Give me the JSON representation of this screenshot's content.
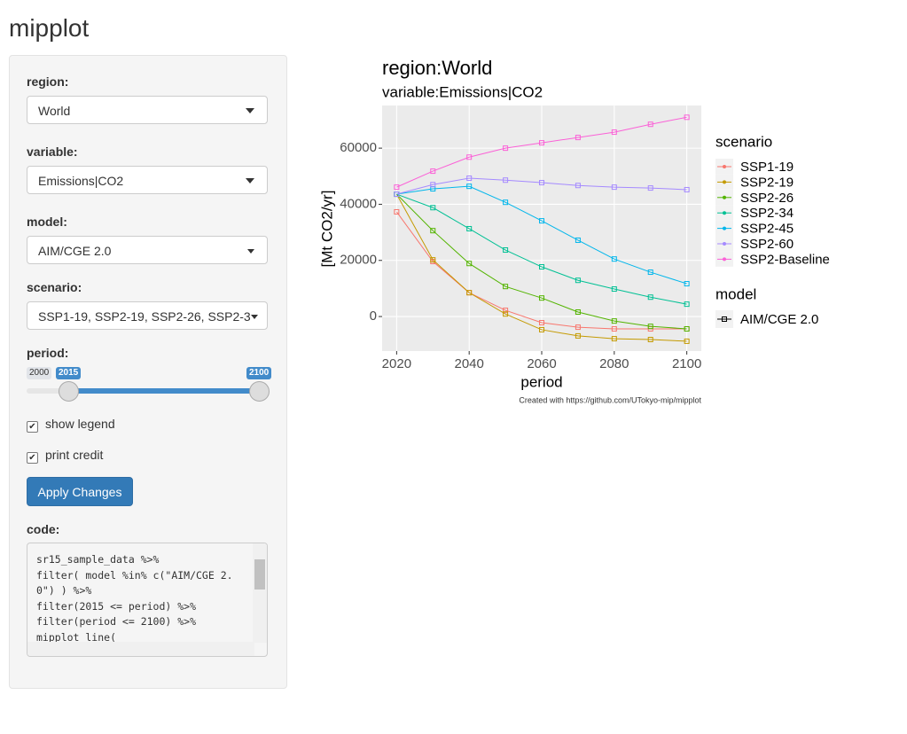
{
  "app_title": "mipplot",
  "sidebar": {
    "region": {
      "label": "region:",
      "value": "World"
    },
    "variable": {
      "label": "variable:",
      "value": "Emissions|CO2"
    },
    "model": {
      "label": "model:",
      "value": "AIM/CGE 2.0"
    },
    "scenario": {
      "label": "scenario:",
      "value": "SSP1-19, SSP2-19, SSP2-26, SSP2-3"
    },
    "period": {
      "label": "period:",
      "min": 2000,
      "from": 2015,
      "to": 2100
    },
    "show_legend": "show legend",
    "print_credit": "print credit",
    "button": "Apply Changes",
    "code_label": "code:",
    "code_lines": [
      "sr15_sample_data %>%",
      "filter( model %in% c(\"AIM/CGE 2.",
      "0\") ) %>%",
      "filter(2015 <= period) %>%",
      "filter(period <= 2100) %>%",
      "mipplot_line("
    ]
  },
  "chart_data": {
    "type": "line",
    "title": "region:World",
    "subtitle": "variable:Emissions|CO2",
    "x_label": "period",
    "y_label": "[Mt CO2/yr]",
    "caption": "Created with https://github.com/UTokyo-mip/mipplot",
    "x": [
      2020,
      2030,
      2040,
      2050,
      2060,
      2070,
      2080,
      2090,
      2100
    ],
    "xlim": [
      2016,
      2104
    ],
    "xticks": [
      2020,
      2040,
      2060,
      2080,
      2100
    ],
    "ylim": [
      -12300,
      75200
    ],
    "yticks": [
      0,
      20000,
      40000,
      60000
    ],
    "grid": true,
    "legend_title": "scenario",
    "model_legend_title": "model",
    "model_legend": "AIM/CGE 2.0",
    "series": [
      {
        "name": "SSP1-19",
        "color": "#F8766D",
        "values": [
          37300,
          19600,
          8500,
          2200,
          -2200,
          -3800,
          -4400,
          -4400,
          -4400
        ]
      },
      {
        "name": "SSP2-19",
        "color": "#C49A00",
        "values": [
          43600,
          20200,
          8500,
          900,
          -4700,
          -6900,
          -7900,
          -8200,
          -8800
        ]
      },
      {
        "name": "SSP2-26",
        "color": "#53B400",
        "values": [
          43600,
          30600,
          18900,
          10700,
          6600,
          1600,
          -1600,
          -3500,
          -4400
        ]
      },
      {
        "name": "SSP2-34",
        "color": "#00C094",
        "values": [
          43600,
          38800,
          31300,
          23700,
          17700,
          12900,
          9800,
          6900,
          4400
        ]
      },
      {
        "name": "SSP2-45",
        "color": "#00B6EB",
        "values": [
          43600,
          45500,
          46400,
          40700,
          34100,
          27200,
          20500,
          15800,
          11700
        ]
      },
      {
        "name": "SSP2-60",
        "color": "#A58AFF",
        "values": [
          43600,
          47000,
          49300,
          48600,
          47700,
          46700,
          46100,
          45800,
          45200
        ]
      },
      {
        "name": "SSP2-Baseline",
        "color": "#FB61D7",
        "values": [
          46100,
          51800,
          56800,
          60000,
          61900,
          63800,
          65700,
          68500,
          71000
        ]
      }
    ]
  }
}
